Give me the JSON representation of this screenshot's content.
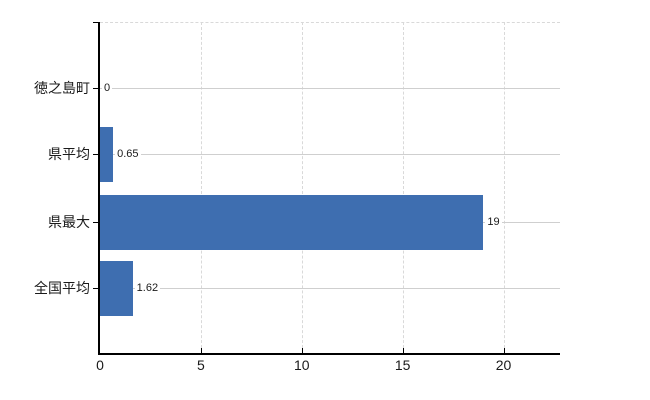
{
  "chart_data": {
    "type": "bar",
    "orientation": "horizontal",
    "title": "",
    "xlabel": "",
    "ylabel": "",
    "categories": [
      "徳之島町",
      "県平均",
      "県最大",
      "全国平均"
    ],
    "values": [
      0,
      0.65,
      19,
      1.62
    ],
    "value_labels": [
      "0",
      "0.65",
      "19",
      "1.62"
    ],
    "x_ticks": [
      0,
      5,
      10,
      15,
      20
    ],
    "x_tick_labels": [
      "0",
      "5",
      "10",
      "15",
      "20"
    ],
    "xlim": [
      0,
      22.8
    ],
    "grid": true,
    "legend": "none",
    "colors": {
      "bar": "#3e6eb0",
      "axis": "#000000",
      "grid_dashed": "#d9d9d9",
      "grid_row": "#cfcfcf",
      "text": "#1a1a1a",
      "background": "#ffffff"
    }
  }
}
